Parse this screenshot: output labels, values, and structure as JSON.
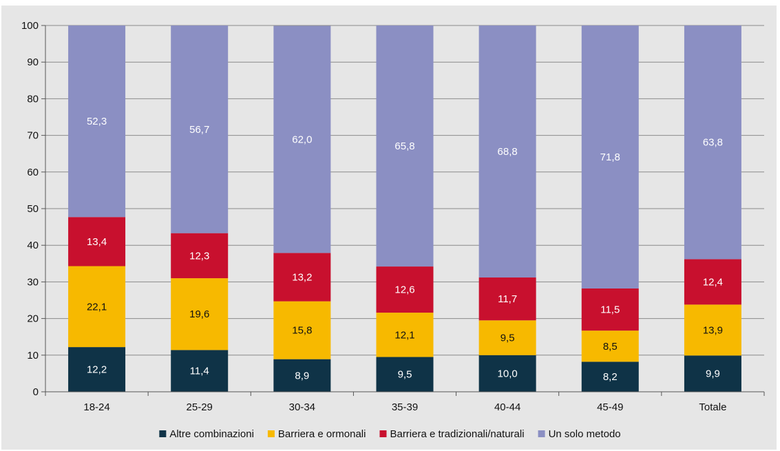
{
  "chart_data": {
    "type": "bar",
    "stacked": true,
    "categories": [
      "18-24",
      "25-29",
      "30-34",
      "35-39",
      "40-44",
      "45-49",
      "Totale"
    ],
    "series": [
      {
        "name": "Altre combinazioni",
        "color": "#0f3347",
        "label_color": "#ffffff",
        "values": [
          12.2,
          11.4,
          8.9,
          9.5,
          10.0,
          8.2,
          9.9
        ],
        "labels": [
          "12,2",
          "11,4",
          "8,9",
          "9,5",
          "10,0",
          "8,2",
          "9,9"
        ]
      },
      {
        "name": "Barriera e ormonali",
        "color": "#f7b900",
        "label_color": "#111111",
        "values": [
          22.1,
          19.6,
          15.8,
          12.1,
          9.5,
          8.5,
          13.9
        ],
        "labels": [
          "22,1",
          "19,6",
          "15,8",
          "12,1",
          "9,5",
          "8,5",
          "13,9"
        ]
      },
      {
        "name": "Barriera e tradizionali/naturali",
        "color": "#c8102e",
        "label_color": "#ffffff",
        "values": [
          13.4,
          12.3,
          13.2,
          12.6,
          11.7,
          11.5,
          12.4
        ],
        "labels": [
          "13,4",
          "12,3",
          "13,2",
          "12,6",
          "11,7",
          "11,5",
          "12,4"
        ]
      },
      {
        "name": "Un solo metodo",
        "color": "#8b8fc3",
        "label_color": "#ffffff",
        "values": [
          52.3,
          56.7,
          62.0,
          65.8,
          68.8,
          71.8,
          63.8
        ],
        "labels": [
          "52,3",
          "56,7",
          "62,0",
          "65,8",
          "68,8",
          "71,8",
          "63,8"
        ]
      }
    ],
    "ylim": [
      0,
      100
    ],
    "yticks": [
      "0",
      "10",
      "20",
      "30",
      "40",
      "50",
      "60",
      "70",
      "80",
      "90",
      "100"
    ],
    "grid": true,
    "legend_position": "bottom",
    "title": "",
    "xlabel": "",
    "ylabel": ""
  }
}
